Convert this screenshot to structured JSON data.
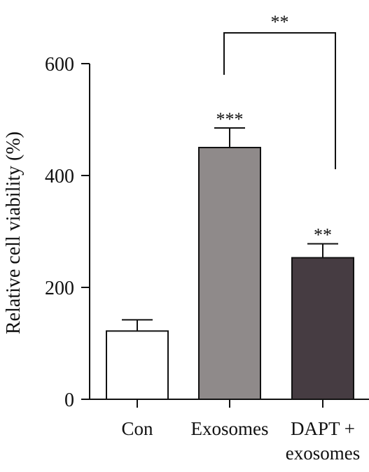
{
  "chart_data": {
    "type": "bar",
    "ylabel": "Relative cell viability (%)",
    "ylim": [
      0,
      600
    ],
    "yticks": [
      0,
      200,
      400,
      600
    ],
    "grid": false,
    "categories": [
      [
        "Con"
      ],
      [
        "Exosomes"
      ],
      [
        "DAPT +",
        "exosomes"
      ]
    ],
    "values": [
      122,
      450,
      253
    ],
    "errors": [
      20,
      35,
      25
    ],
    "bar_colors": [
      "#ffffff",
      "#8f8a8a",
      "#463c42"
    ],
    "significance": [
      "",
      "***",
      "**"
    ],
    "comparison": {
      "from": 1,
      "to": 2,
      "label": "**"
    }
  }
}
